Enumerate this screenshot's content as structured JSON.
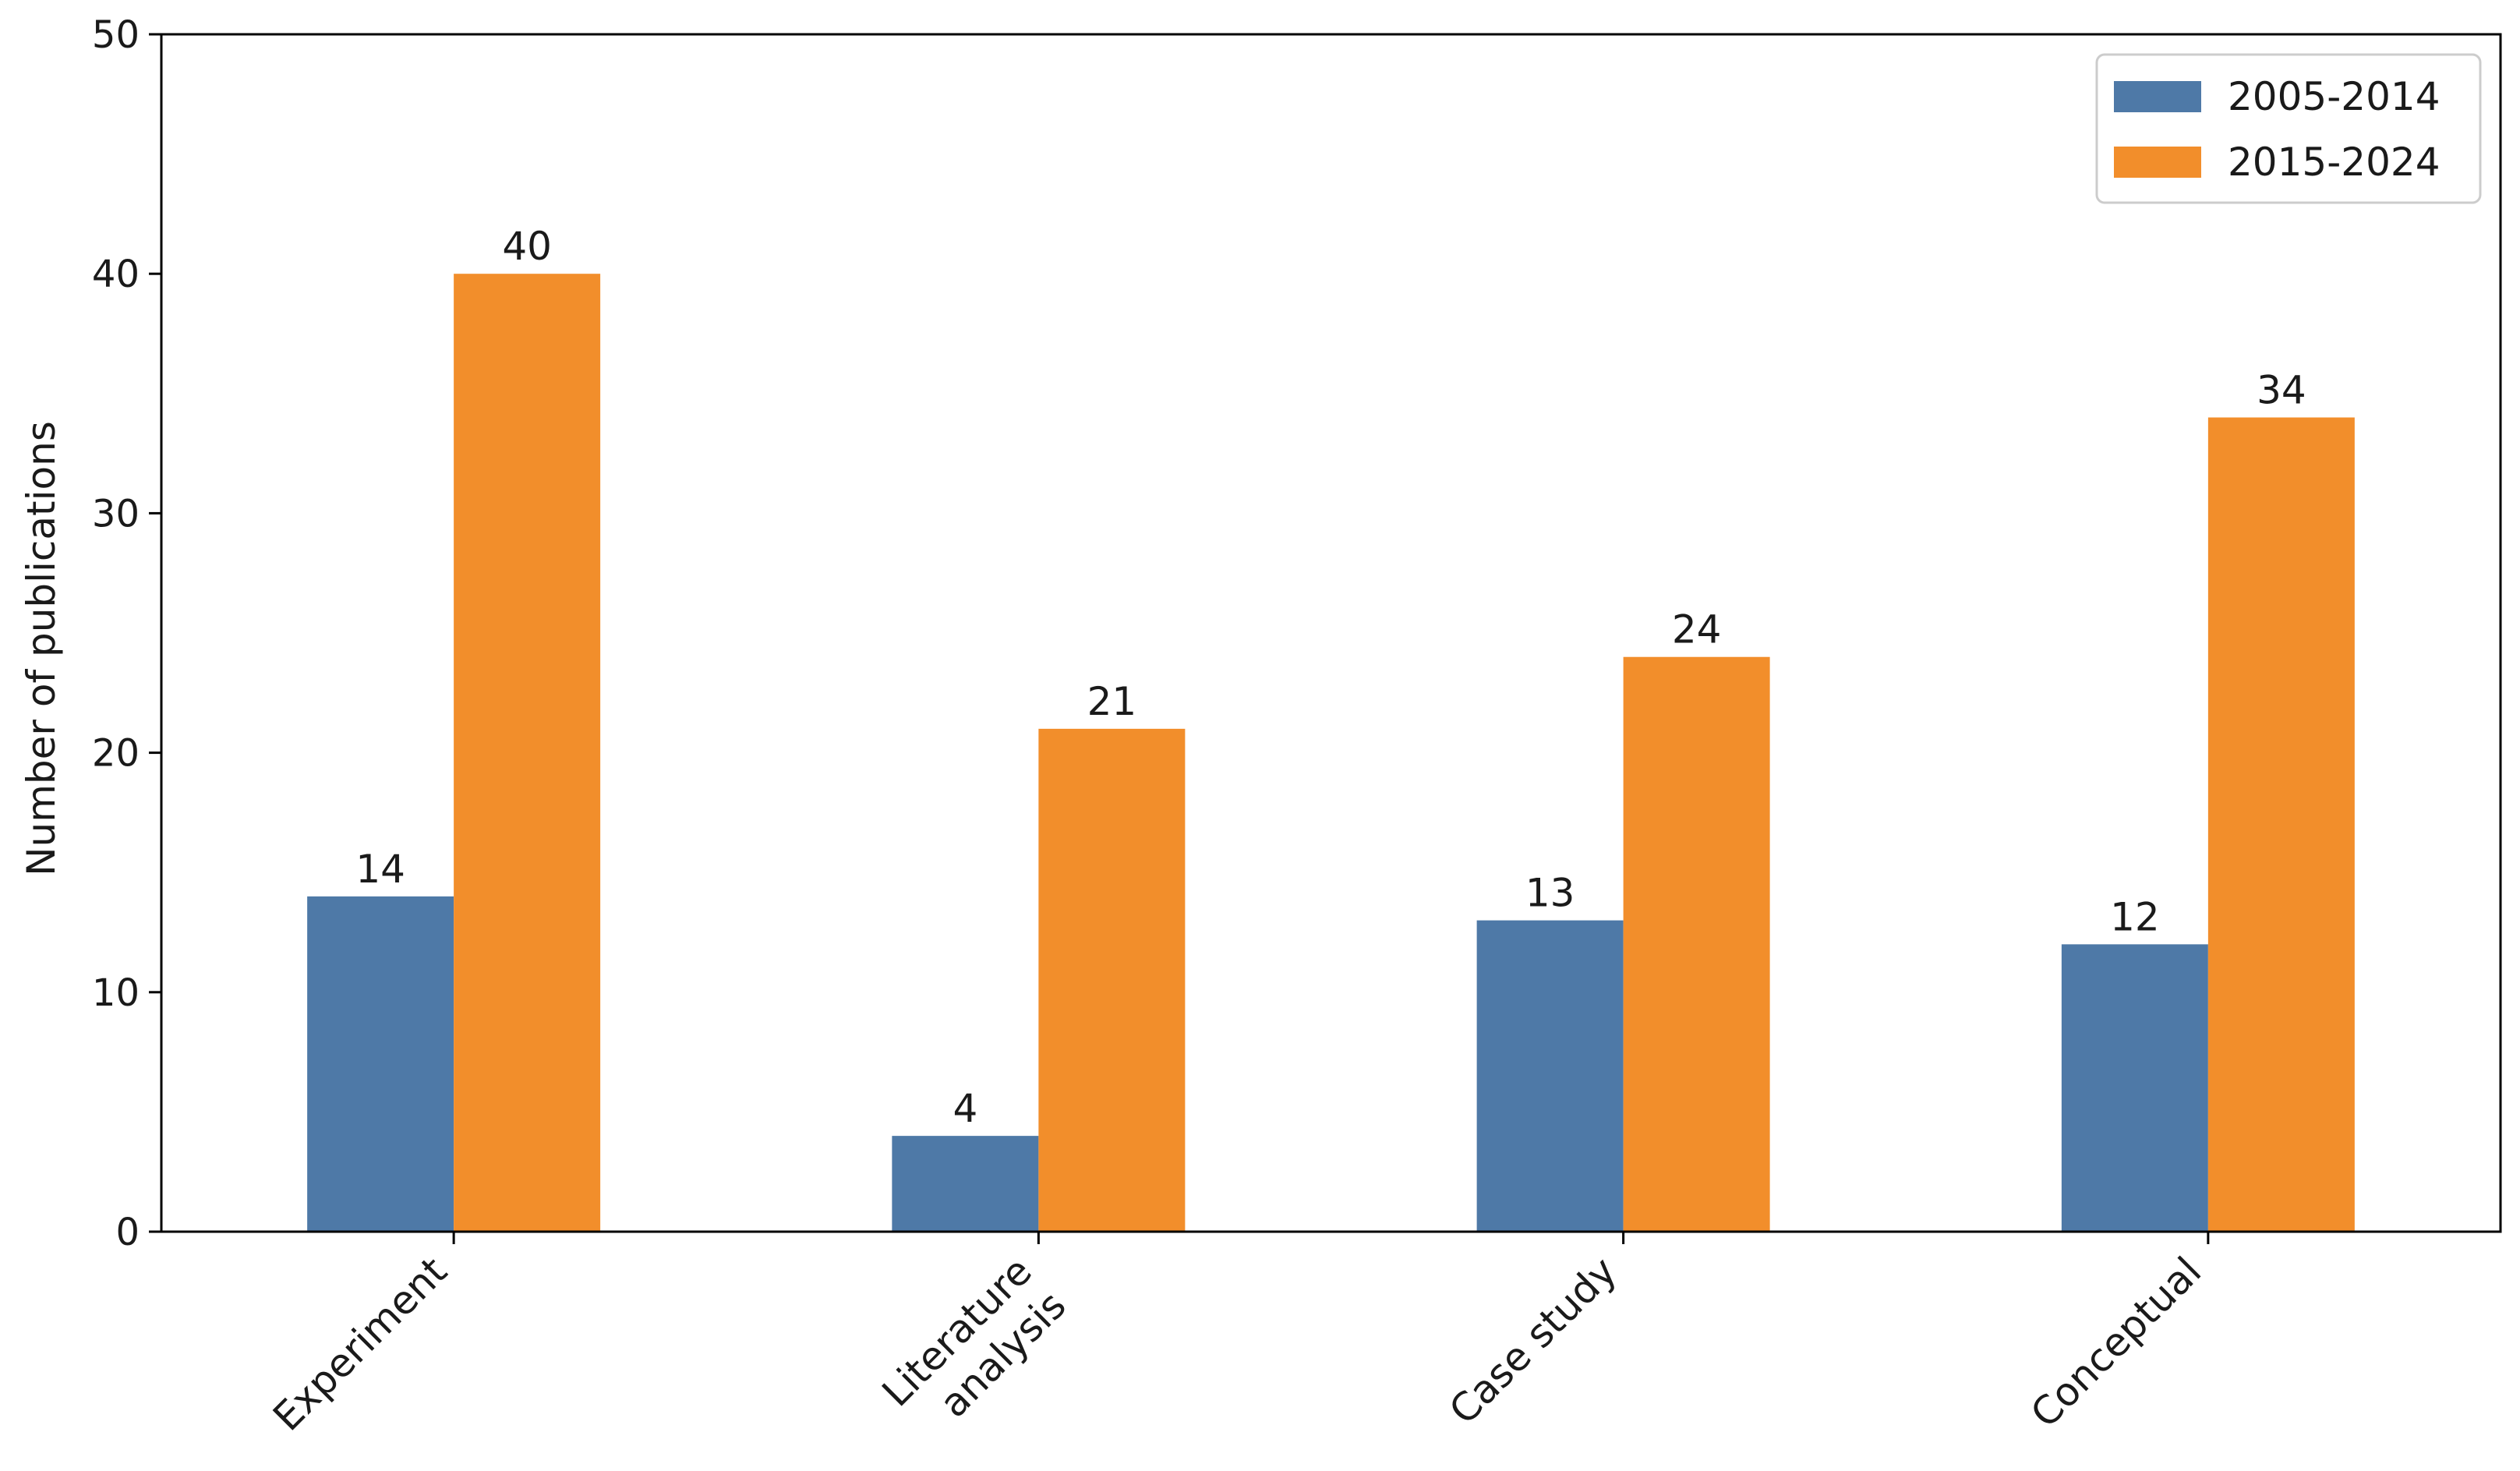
{
  "chart_data": {
    "type": "bar",
    "categories": [
      [
        "Experiment"
      ],
      [
        "Literature",
        "analysis"
      ],
      [
        "Case study"
      ],
      [
        "Conceptual"
      ]
    ],
    "series": [
      {
        "name": "2005-2014",
        "color": "#4e79a7",
        "values": [
          14,
          4,
          13,
          12
        ]
      },
      {
        "name": "2015-2024",
        "color": "#f28e2b",
        "values": [
          40,
          21,
          24,
          34
        ]
      }
    ],
    "title": "",
    "xlabel": "",
    "ylabel": "Number of publications",
    "ylim": [
      0,
      50
    ],
    "yticks": [
      0,
      10,
      20,
      30,
      40,
      50
    ],
    "grid": false,
    "legend_position": "top-right",
    "data_labels": true
  }
}
